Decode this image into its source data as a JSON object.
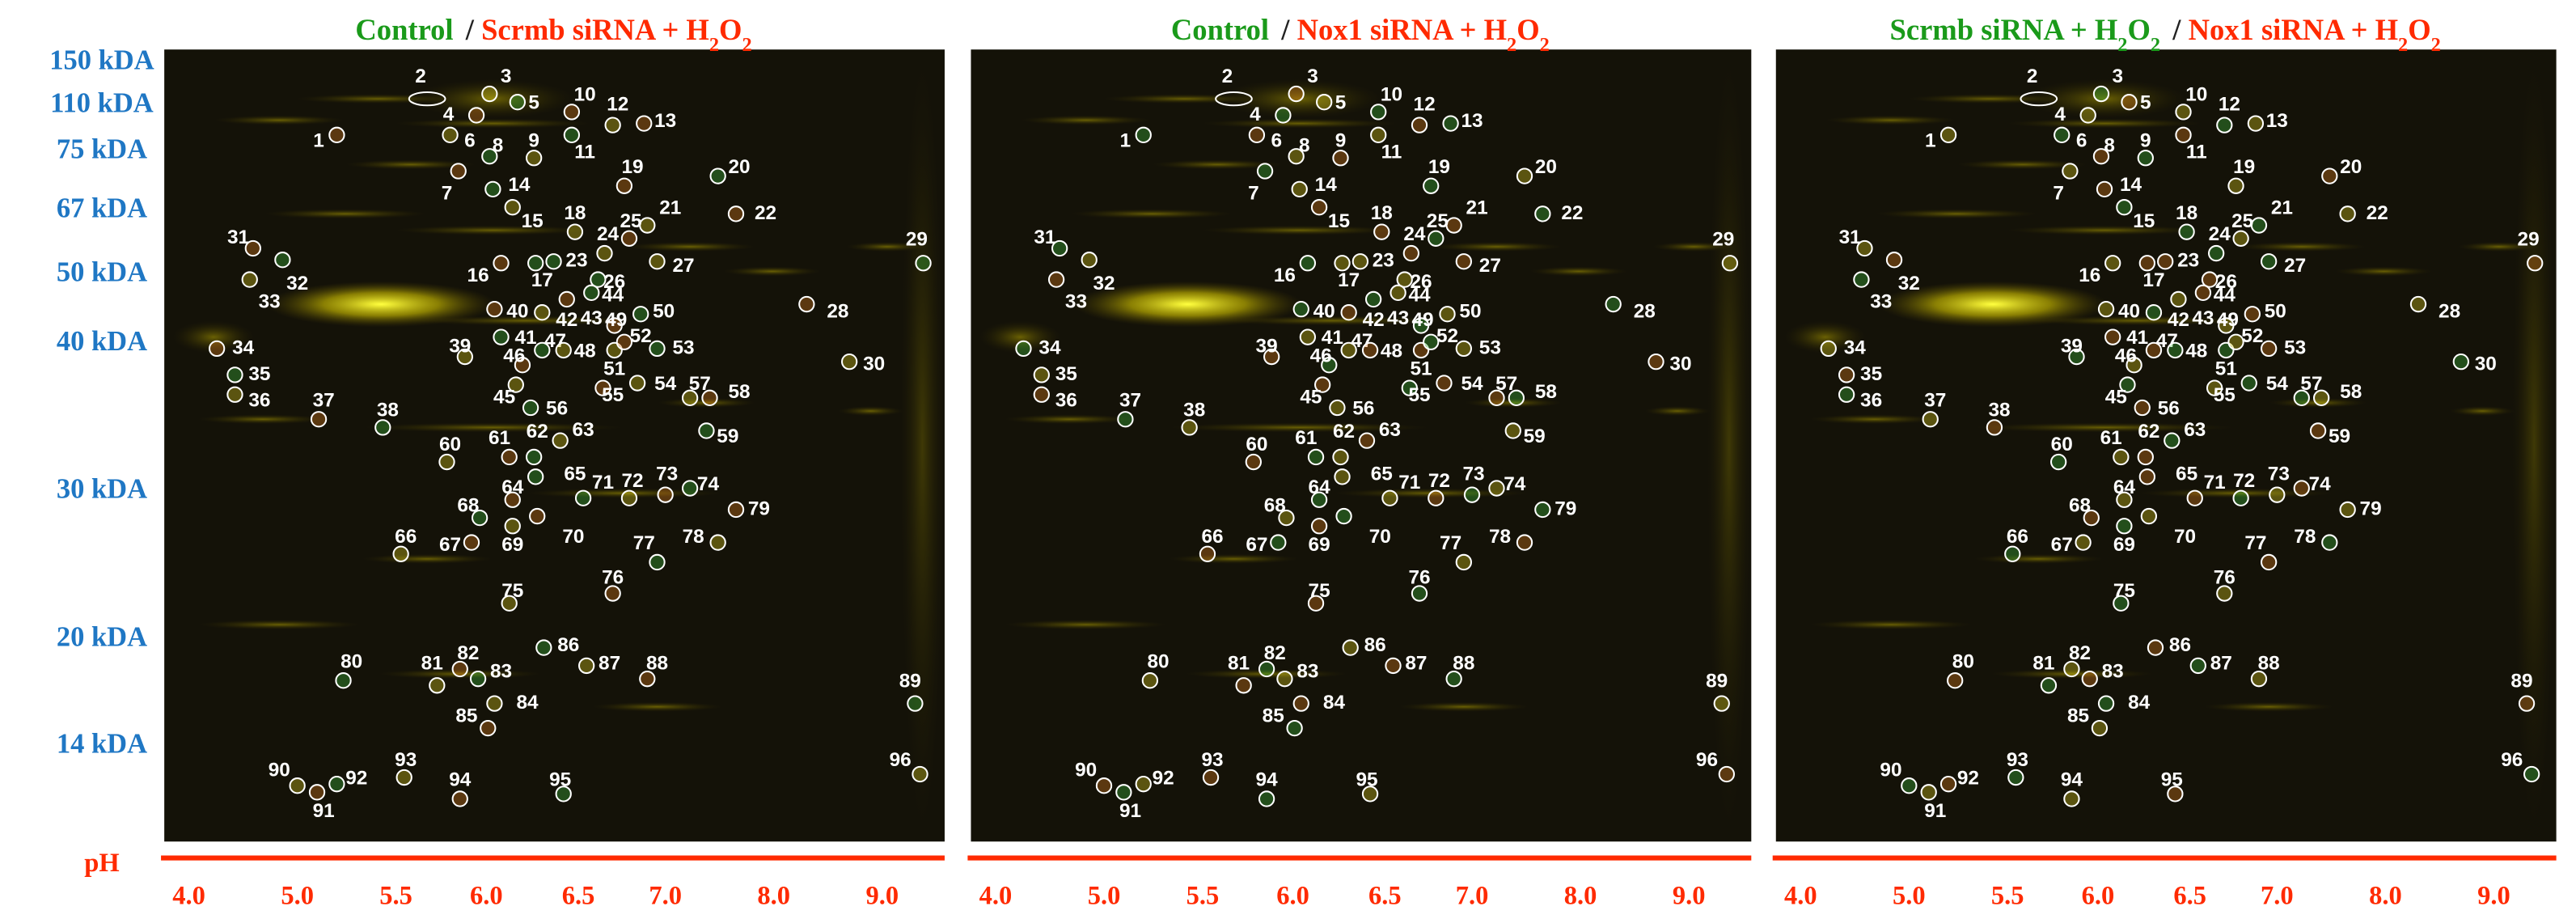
{
  "figure": {
    "mw_labels": [
      "150 kDA",
      "110 kDA",
      "75 kDA",
      "67 kDA",
      "50 kDA",
      "40 kDA",
      "30 kDA",
      "20 kDA",
      "14 kDA"
    ],
    "ph_label": "pH",
    "panels": [
      {
        "title": {
          "left": [
            "Control"
          ],
          "separator": "/",
          "right": [
            "Scrmb siRNA + H",
            "2",
            "O",
            "2"
          ]
        },
        "ph_ticks": [
          "4.0",
          "5.0",
          "5.5",
          "6.0",
          "6.5",
          "7.0",
          "8.0",
          "9.0"
        ],
        "spots": [
          1,
          2,
          3,
          4,
          5,
          6,
          7,
          8,
          9,
          10,
          11,
          12,
          13,
          14,
          15,
          16,
          17,
          18,
          19,
          20,
          21,
          22,
          23,
          24,
          25,
          26,
          27,
          28,
          29,
          30,
          31,
          32,
          33,
          34,
          35,
          36,
          37,
          38,
          39,
          40,
          41,
          42,
          43,
          44,
          45,
          46,
          47,
          48,
          49,
          50,
          51,
          52,
          53,
          54,
          55,
          56,
          57,
          58,
          59,
          60,
          61,
          62,
          63,
          64,
          65,
          66,
          67,
          68,
          69,
          70,
          71,
          72,
          73,
          74,
          75,
          76,
          77,
          78,
          79,
          80,
          81,
          82,
          83,
          84,
          85,
          86,
          87,
          88,
          89,
          90,
          91,
          92,
          93,
          94,
          95,
          96
        ]
      },
      {
        "title": {
          "left": [
            "Control"
          ],
          "separator": "/",
          "right": [
            "Nox1 siRNA + H",
            "2",
            "O",
            "2"
          ]
        },
        "ph_ticks": [
          "4.0",
          "5.0",
          "5.5",
          "6.0",
          "6.5",
          "7.0",
          "8.0",
          "9.0"
        ],
        "spots": [
          1,
          2,
          3,
          4,
          5,
          6,
          7,
          8,
          9,
          10,
          11,
          12,
          13,
          14,
          15,
          16,
          17,
          18,
          19,
          20,
          21,
          22,
          23,
          24,
          25,
          26,
          27,
          28,
          29,
          30,
          31,
          32,
          33,
          34,
          35,
          36,
          37,
          38,
          39,
          40,
          41,
          42,
          43,
          44,
          45,
          46,
          47,
          48,
          49,
          50,
          51,
          52,
          53,
          54,
          55,
          56,
          57,
          58,
          59,
          60,
          61,
          62,
          63,
          64,
          65,
          66,
          67,
          68,
          69,
          70,
          71,
          72,
          73,
          74,
          75,
          76,
          77,
          78,
          79,
          80,
          81,
          82,
          83,
          84,
          85,
          86,
          87,
          88,
          89,
          90,
          91,
          92,
          93,
          94,
          95,
          96
        ]
      },
      {
        "title": {
          "left": [
            "Scrmb siRNA + H",
            "2",
            "O",
            "2"
          ],
          "separator": "/",
          "right": [
            "Nox1 siRNA + H",
            "2",
            "O",
            "2"
          ]
        },
        "ph_ticks": [
          "4.0",
          "5.0",
          "5.5",
          "6.0",
          "6.5",
          "7.0",
          "8.0",
          "9.0"
        ],
        "spots": [
          1,
          2,
          3,
          4,
          5,
          6,
          7,
          8,
          9,
          10,
          11,
          12,
          13,
          14,
          15,
          16,
          17,
          18,
          19,
          20,
          21,
          22,
          23,
          24,
          25,
          26,
          27,
          28,
          29,
          30,
          31,
          32,
          33,
          34,
          35,
          36,
          37,
          38,
          39,
          40,
          41,
          42,
          43,
          44,
          45,
          46,
          47,
          48,
          49,
          50,
          51,
          52,
          53,
          54,
          55,
          56,
          57,
          58,
          59,
          60,
          61,
          62,
          63,
          64,
          65,
          66,
          67,
          68,
          69,
          70,
          71,
          72,
          73,
          74,
          75,
          76,
          77,
          78,
          79,
          80,
          81,
          82,
          83,
          84,
          85,
          86,
          87,
          88,
          89,
          90,
          91,
          92,
          93,
          94,
          95,
          96
        ]
      }
    ]
  }
}
